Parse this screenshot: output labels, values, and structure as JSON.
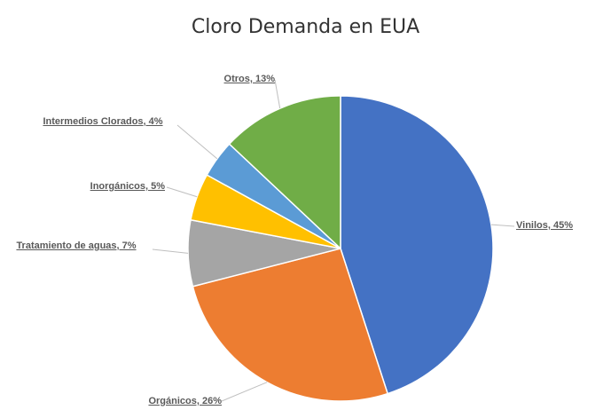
{
  "chart_data": {
    "type": "pie",
    "title": "Cloro Demanda en EUA",
    "values": [
      45,
      26,
      7,
      5,
      4,
      13
    ],
    "value_labels": [
      "Vinilos, 45%",
      "Orgánicos, 26%",
      "Tratamiento de aguas, 7%",
      "Inorgánicos, 5%",
      "Intermedios Clorados, 4%",
      "Otros, 13%"
    ],
    "colors": [
      "#4472c4",
      "#ed7d31",
      "#a5a5a5",
      "#ffc000",
      "#5b9bd5",
      "#70ad47"
    ]
  }
}
